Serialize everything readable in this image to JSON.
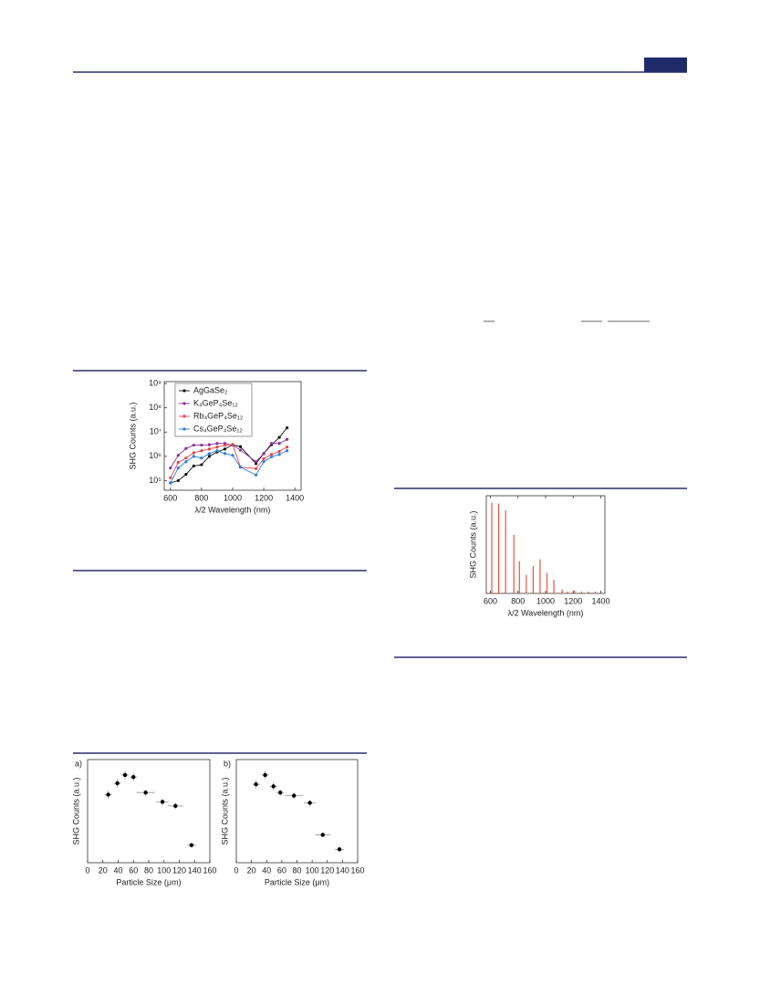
{
  "chart_data": [
    {
      "type": "line",
      "y_label": "SHG Counts (a.u.)",
      "x_label": "λ/2 Wavelength (nm)",
      "log_y": true,
      "legend": "upper left",
      "x": [
        600,
        650,
        700,
        750,
        800,
        850,
        900,
        950,
        1000,
        1050,
        1150,
        1200,
        1250,
        1300,
        1350
      ],
      "xlim": [
        560,
        1440
      ],
      "xticks": [
        600,
        800,
        1000,
        1200,
        1400
      ],
      "ylim": [
        40000,
        1200000000
      ],
      "yticks": [
        {
          "value": 100000,
          "label": "10⁵"
        },
        {
          "value": 1000000,
          "label": "10⁶"
        },
        {
          "value": 10000000,
          "label": "10⁷"
        },
        {
          "value": 100000000,
          "label": "10⁸"
        },
        {
          "value": 1000000000,
          "label": "10⁹"
        }
      ],
      "series": [
        {
          "name": "AgGaSe₂",
          "color": "#111111",
          "values": [
            80000,
            100000,
            180000,
            400000,
            450000,
            1000000,
            1500000,
            2000000,
            3000000,
            2500000,
            500000,
            1300000,
            3000000,
            6000000,
            15000000
          ]
        },
        {
          "name": "K₄GeP₄Se₁₂",
          "color": "#8b2d9a",
          "values": [
            330000,
            1100000,
            2100000,
            2900000,
            2900000,
            3000000,
            3400000,
            3400000,
            2900000,
            1800000,
            600000,
            1300000,
            3400000,
            3400000,
            5000000
          ]
        },
        {
          "name": "Rb₄GeP₄Se₁₂",
          "color": "#e8424a",
          "values": [
            130000,
            560000,
            850000,
            1400000,
            1700000,
            2000000,
            2400000,
            2900000,
            3100000,
            360000,
            310000,
            800000,
            1200000,
            1600000,
            2400000
          ]
        },
        {
          "name": "Cs₄GeP₄Se₁₂",
          "color": "#2a7de1",
          "values": [
            80000,
            330000,
            600000,
            1000000,
            850000,
            1300000,
            1700000,
            1300000,
            1100000,
            360000,
            170000,
            600000,
            950000,
            1200000,
            1700000
          ]
        }
      ]
    },
    {
      "type": "stem",
      "y_label": "SHG Counts (a.u.)",
      "x_label": "λ/2 Wavelength (nm)",
      "color": "#e8553e",
      "x": [
        610,
        660,
        710,
        770,
        810,
        860,
        910,
        960,
        1010,
        1060,
        1120,
        1160,
        1210,
        1260,
        1310,
        1360
      ],
      "values": [
        93,
        92,
        85,
        60,
        33,
        19,
        28,
        35,
        21,
        14,
        4,
        2,
        3,
        2,
        2,
        2
      ],
      "xlim": [
        570,
        1430
      ],
      "xticks": [
        600,
        800,
        1000,
        1200,
        1400
      ],
      "ylim": [
        0,
        100
      ]
    },
    {
      "type": "scatter",
      "panel": "a)",
      "y_label": "SHG Counts (a.u.)",
      "x_label": "Particle Size (μm)",
      "xlim": [
        0,
        160
      ],
      "xticks": [
        0,
        20,
        40,
        60,
        80,
        100,
        120,
        140,
        160
      ],
      "ylim": [
        0,
        100
      ],
      "series": [
        {
          "color": "#000000",
          "x": [
            27,
            39,
            49,
            60,
            76,
            98,
            115,
            136
          ],
          "values": [
            66,
            77,
            85,
            83,
            68,
            59,
            55,
            17
          ],
          "x_err": [
            5,
            5,
            5,
            5,
            12,
            8,
            10,
            6
          ],
          "y_err": [
            4,
            4,
            4,
            4,
            3,
            3,
            3,
            2
          ]
        }
      ]
    },
    {
      "type": "scatter",
      "panel": "b)",
      "y_label": "SHG Counts (a.u.)",
      "x_label": "Particle Size (μm)",
      "xlim": [
        0,
        160
      ],
      "xticks": [
        0,
        20,
        40,
        60,
        80,
        100,
        120,
        140,
        160
      ],
      "ylim": [
        0,
        100
      ],
      "series": [
        {
          "color": "#000000",
          "x": [
            26,
            38,
            49,
            58,
            76,
            97,
            114,
            136
          ],
          "values": [
            76,
            85,
            74,
            68,
            65,
            58,
            27,
            13
          ],
          "x_err": [
            5,
            5,
            5,
            5,
            12,
            8,
            10,
            6
          ],
          "y_err": [
            4,
            4,
            4,
            3,
            3,
            3,
            2,
            2
          ]
        }
      ]
    }
  ]
}
